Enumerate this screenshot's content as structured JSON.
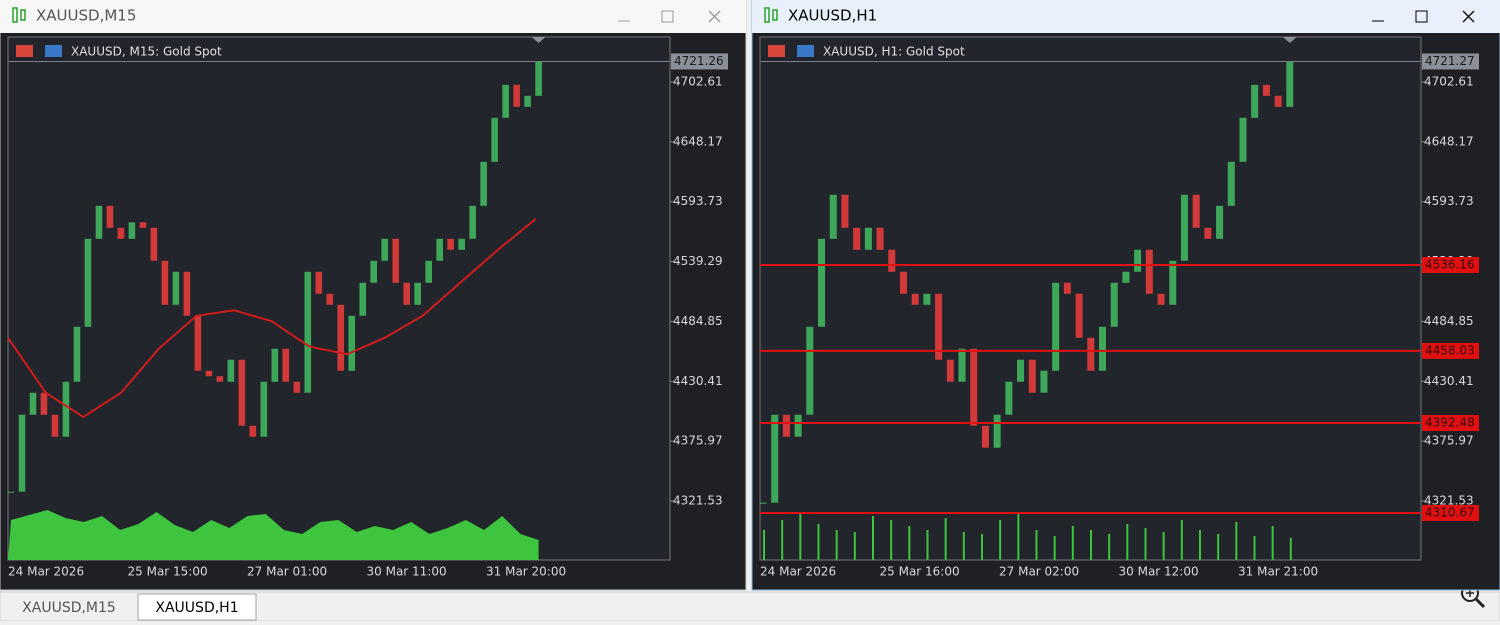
{
  "windows": [
    {
      "title": "XAUUSD,M15",
      "chart_label": "XAUUSD, M15:  Gold Spot",
      "active": false,
      "ylim": [
        4267.9,
        4743.5
      ],
      "price_ticks": [
        4702.61,
        4648.17,
        4593.73,
        4539.29,
        4484.85,
        4430.41,
        4375.97,
        4321.53
      ],
      "current_price": 4721.26,
      "time_labels": [
        "24 Mar 2026",
        "25 Mar 15:00",
        "27 Mar 01:00",
        "30 Mar 11:00",
        "31 Mar 20:00"
      ],
      "closes": [
        4330,
        4400,
        4420,
        4400,
        4380,
        4430,
        4480,
        4560,
        4590,
        4570,
        4560,
        4575,
        4570,
        4540,
        4500,
        4530,
        4490,
        4440,
        4435,
        4430,
        4450,
        4390,
        4380,
        4430,
        4460,
        4430,
        4420,
        4530,
        4510,
        4500,
        4440,
        4490,
        4520,
        4540,
        4560,
        4520,
        4500,
        4520,
        4540,
        4560,
        4550,
        4560,
        4590,
        4630,
        4670,
        4700,
        4680,
        4690,
        4721.26
      ],
      "ma": [
        4470,
        4420,
        4398,
        4420,
        4460,
        4490,
        4495,
        4485,
        4462,
        4455,
        4470,
        4490,
        4520,
        4550,
        4578
      ],
      "volume": [
        40,
        45,
        50,
        42,
        38,
        44,
        30,
        36,
        48,
        35,
        28,
        40,
        32,
        44,
        46,
        30,
        26,
        38,
        40,
        28,
        34,
        30,
        38,
        26,
        32,
        40,
        30,
        44,
        26,
        20
      ]
    },
    {
      "title": "XAUUSD,H1",
      "chart_label": "XAUUSD, H1:  Gold Spot",
      "active": true,
      "ylim": [
        4267.9,
        4743.5
      ],
      "price_ticks": [
        4702.61,
        4648.17,
        4593.73,
        4539.29,
        4484.85,
        4430.41,
        4375.97,
        4321.53
      ],
      "current_price": 4721.27,
      "levels": [
        4536.16,
        4458.03,
        4392.48,
        4310.67
      ],
      "time_labels": [
        "24 Mar 2026",
        "25 Mar 16:00",
        "27 Mar 02:00",
        "30 Mar 12:00",
        "31 Mar 21:00"
      ],
      "closes": [
        4320,
        4400,
        4380,
        4400,
        4480,
        4560,
        4600,
        4570,
        4550,
        4570,
        4550,
        4530,
        4510,
        4500,
        4510,
        4450,
        4430,
        4460,
        4390,
        4370,
        4400,
        4430,
        4450,
        4420,
        4440,
        4520,
        4510,
        4470,
        4440,
        4480,
        4520,
        4530,
        4550,
        4510,
        4500,
        4540,
        4600,
        4570,
        4560,
        4590,
        4630,
        4670,
        4700,
        4690,
        4680,
        4721.27
      ],
      "volume": [
        30,
        40,
        48,
        36,
        30,
        28,
        44,
        40,
        34,
        30,
        42,
        28,
        26,
        40,
        46,
        30,
        24,
        34,
        30,
        26,
        36,
        32,
        28,
        40,
        30,
        26,
        38,
        24,
        34,
        22
      ]
    }
  ],
  "tabs": [
    "XAUUSD,M15",
    "XAUUSD,H1"
  ]
}
